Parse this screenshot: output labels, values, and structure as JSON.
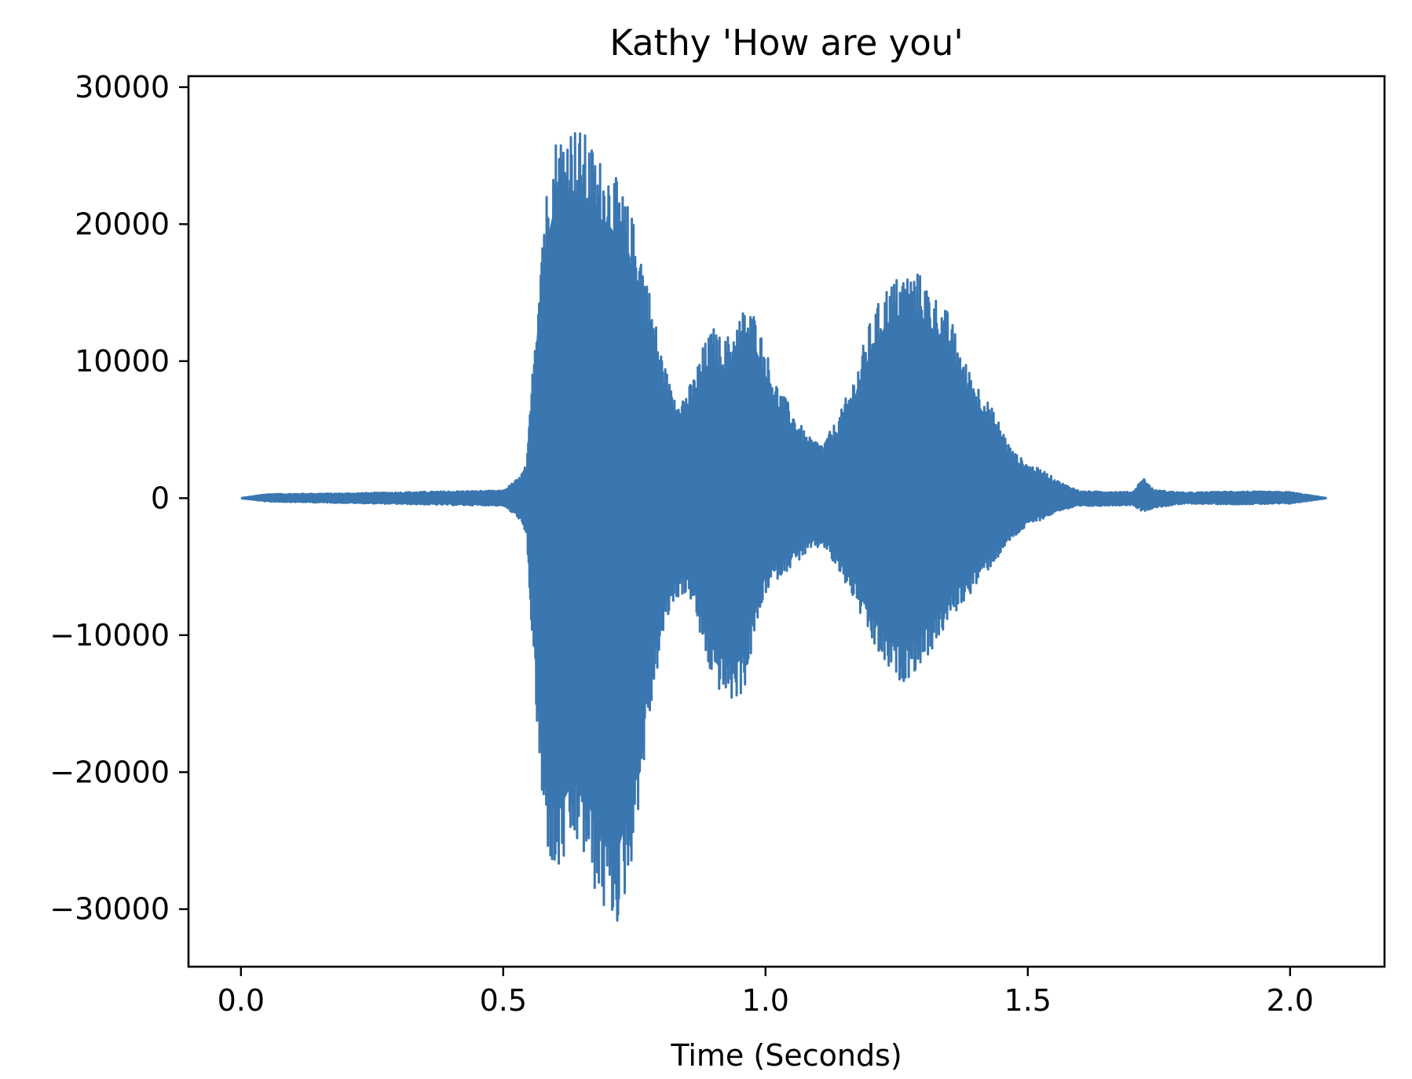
{
  "chart_data": {
    "type": "line",
    "title": "Kathy 'How are you'",
    "xlabel": "Time (Seconds)",
    "ylabel": "",
    "xlim": [
      -0.1,
      2.18
    ],
    "ylim": [
      -34200,
      30800
    ],
    "xticks": [
      0.0,
      0.5,
      1.0,
      1.5,
      2.0
    ],
    "xtick_labels": [
      "0.0",
      "0.5",
      "1.0",
      "1.5",
      "2.0"
    ],
    "yticks": [
      30000,
      20000,
      10000,
      0,
      -10000,
      -20000,
      -30000
    ],
    "ytick_labels": [
      "30000",
      "20000",
      "10000",
      "0",
      "−10000",
      "−20000",
      "−30000"
    ],
    "grid": false,
    "legend": "none",
    "duration_seconds": 2.07,
    "series": [
      {
        "color": "#3a76b0",
        "envelope": {
          "t": [
            0.0,
            0.05,
            0.2,
            0.4,
            0.5,
            0.53,
            0.545,
            0.56,
            0.575,
            0.6,
            0.625,
            0.64,
            0.66,
            0.68,
            0.7,
            0.72,
            0.74,
            0.76,
            0.78,
            0.8,
            0.82,
            0.84,
            0.86,
            0.88,
            0.9,
            0.92,
            0.94,
            0.96,
            0.98,
            1.0,
            1.02,
            1.05,
            1.08,
            1.11,
            1.14,
            1.17,
            1.2,
            1.23,
            1.26,
            1.29,
            1.32,
            1.35,
            1.38,
            1.41,
            1.44,
            1.47,
            1.5,
            1.53,
            1.56,
            1.6,
            1.7,
            1.72,
            1.74,
            1.8,
            1.9,
            2.0,
            2.07
          ],
          "upper": [
            0,
            300,
            350,
            500,
            550,
            1500,
            2500,
            12000,
            21000,
            26500,
            27600,
            27200,
            26500,
            25000,
            24500,
            23000,
            21200,
            19000,
            15000,
            11000,
            8000,
            7500,
            8500,
            11000,
            12500,
            11500,
            12500,
            14000,
            13500,
            11000,
            8500,
            6500,
            4500,
            4000,
            6000,
            9000,
            13000,
            15500,
            16500,
            16600,
            15000,
            13500,
            10000,
            8000,
            6000,
            3500,
            2500,
            2000,
            1200,
            500,
            450,
            1500,
            600,
            400,
            500,
            450,
            0
          ],
          "lower": [
            0,
            -250,
            -350,
            -500,
            -550,
            -1500,
            -3000,
            -14000,
            -24000,
            -28500,
            -26000,
            -25500,
            -27000,
            -29500,
            -31000,
            -31200,
            -28000,
            -22000,
            -16000,
            -11000,
            -8000,
            -7000,
            -7500,
            -11000,
            -13500,
            -14500,
            -15000,
            -14000,
            -10000,
            -7000,
            -6000,
            -5000,
            -4000,
            -3500,
            -5500,
            -7500,
            -10500,
            -12500,
            -13500,
            -12500,
            -11000,
            -9000,
            -7500,
            -6000,
            -4500,
            -3000,
            -2000,
            -1500,
            -900,
            -600,
            -500,
            -1000,
            -700,
            -400,
            -450,
            -400,
            0
          ]
        }
      }
    ]
  }
}
